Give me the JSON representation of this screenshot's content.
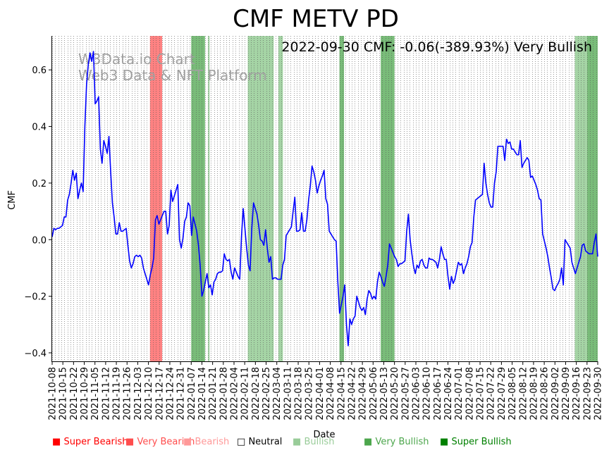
{
  "chart_data": {
    "type": "line",
    "title": "CMF METV PD",
    "xlabel": "Date",
    "ylabel": "CMF",
    "annotation": "2022-09-30 CMF: -0.06(-389.93%) Very Bullish",
    "watermark": [
      "W3Data.io Chart",
      "Web3 Data & NFT Platform"
    ],
    "ylim": [
      -0.43,
      0.72
    ],
    "yticks": [
      -0.4,
      -0.2,
      0.0,
      0.2,
      0.4,
      0.6
    ],
    "ytick_labels": [
      "−0.4",
      "−0.2",
      "0.0",
      "0.2",
      "0.4",
      "0.6"
    ],
    "x_start": "2021-10-08",
    "x_end": "2022-09-30",
    "xtick_labels": [
      "2021-10-08",
      "2021-10-15",
      "2021-10-22",
      "2021-10-29",
      "2021-11-05",
      "2021-11-12",
      "2021-11-19",
      "2021-11-26",
      "2021-12-03",
      "2021-12-10",
      "2021-12-17",
      "2021-12-24",
      "2021-12-31",
      "2022-01-07",
      "2022-01-14",
      "2022-01-21",
      "2022-01-28",
      "2022-02-04",
      "2022-02-11",
      "2022-02-18",
      "2022-02-25",
      "2022-03-04",
      "2022-03-11",
      "2022-03-18",
      "2022-03-25",
      "2022-04-01",
      "2022-04-08",
      "2022-04-15",
      "2022-04-22",
      "2022-04-29",
      "2022-05-06",
      "2022-05-13",
      "2022-05-20",
      "2022-05-27",
      "2022-06-03",
      "2022-06-10",
      "2022-06-17",
      "2022-06-24",
      "2022-07-01",
      "2022-07-08",
      "2022-07-15",
      "2022-07-22",
      "2022-07-29",
      "2022-08-05",
      "2022-08-12",
      "2022-08-19",
      "2022-08-26",
      "2022-09-02",
      "2022-09-09",
      "2022-09-16",
      "2022-09-23",
      "2022-09-30"
    ],
    "line_color": "#0000ff",
    "series": [
      {
        "name": "CMF",
        "values": [
          0.01,
          0.04,
          0.035,
          0.04,
          0.04,
          0.045,
          0.05,
          0.08,
          0.08,
          0.14,
          0.16,
          0.2,
          0.245,
          0.21,
          0.235,
          0.145,
          0.175,
          0.2,
          0.17,
          0.4,
          0.55,
          0.62,
          0.66,
          0.63,
          0.665,
          0.48,
          0.49,
          0.505,
          0.32,
          0.27,
          0.35,
          0.33,
          0.305,
          0.365,
          0.24,
          0.13,
          0.08,
          0.02,
          0.02,
          0.06,
          0.03,
          0.03,
          0.035,
          0.04,
          -0.02,
          -0.075,
          -0.1,
          -0.085,
          -0.06,
          -0.055,
          -0.06,
          -0.055,
          -0.065,
          -0.1,
          -0.12,
          -0.14,
          -0.16,
          -0.125,
          -0.1,
          -0.065,
          0.07,
          0.085,
          0.055,
          0.07,
          0.085,
          0.1,
          0.1,
          0.02,
          0.05,
          0.175,
          0.135,
          0.155,
          0.175,
          0.195,
          0.0,
          -0.03,
          0.005,
          0.065,
          0.08,
          0.13,
          0.12,
          0.015,
          0.08,
          0.055,
          0.03,
          -0.02,
          -0.09,
          -0.2,
          -0.18,
          -0.15,
          -0.12,
          -0.17,
          -0.16,
          -0.195,
          -0.15,
          -0.14,
          -0.12,
          -0.115,
          -0.115,
          -0.11,
          -0.05,
          -0.07,
          -0.075,
          -0.07,
          -0.115,
          -0.14,
          -0.1,
          -0.115,
          -0.13,
          -0.14,
          0.01,
          0.11,
          0.04,
          -0.03,
          -0.09,
          -0.11,
          0.04,
          0.13,
          0.11,
          0.09,
          0.05,
          0.0,
          -0.005,
          -0.02,
          0.035,
          -0.03,
          -0.08,
          -0.06,
          -0.14,
          -0.135,
          -0.135,
          -0.14,
          -0.14,
          -0.14,
          -0.09,
          -0.07,
          0.015,
          0.025,
          0.035,
          0.045,
          0.1,
          0.15,
          0.03,
          0.03,
          0.035,
          0.095,
          0.03,
          0.03,
          0.07,
          0.14,
          0.19,
          0.26,
          0.24,
          0.21,
          0.165,
          0.19,
          0.21,
          0.225,
          0.245,
          0.145,
          0.125,
          0.03,
          0.02,
          0.01,
          0.0,
          -0.005,
          -0.15,
          -0.26,
          -0.23,
          -0.2,
          -0.16,
          -0.3,
          -0.375,
          -0.28,
          -0.3,
          -0.28,
          -0.27,
          -0.2,
          -0.22,
          -0.24,
          -0.25,
          -0.24,
          -0.265,
          -0.21,
          -0.18,
          -0.19,
          -0.21,
          -0.2,
          -0.21,
          -0.15,
          -0.115,
          -0.13,
          -0.15,
          -0.165,
          -0.13,
          -0.09,
          -0.015,
          -0.03,
          -0.045,
          -0.06,
          -0.07,
          -0.095,
          -0.085,
          -0.085,
          -0.08,
          -0.075,
          0.03,
          0.09,
          0.0,
          -0.05,
          -0.095,
          -0.12,
          -0.09,
          -0.1,
          -0.075,
          -0.07,
          -0.09,
          -0.1,
          -0.1,
          -0.065,
          -0.07,
          -0.07,
          -0.075,
          -0.08,
          -0.1,
          -0.07,
          -0.025,
          -0.05,
          -0.07,
          -0.07,
          -0.13,
          -0.175,
          -0.13,
          -0.155,
          -0.14,
          -0.11,
          -0.08,
          -0.09,
          -0.085,
          -0.12,
          -0.1,
          -0.085,
          -0.06,
          -0.025,
          -0.01,
          0.08,
          0.14,
          0.145,
          0.15,
          0.155,
          0.16,
          0.27,
          0.2,
          0.16,
          0.13,
          0.115,
          0.115,
          0.2,
          0.24,
          0.33,
          0.33,
          0.33,
          0.33,
          0.28,
          0.355,
          0.34,
          0.345,
          0.32,
          0.32,
          0.31,
          0.3,
          0.3,
          0.35,
          0.255,
          0.27,
          0.28,
          0.29,
          0.28,
          0.22,
          0.225,
          0.21,
          0.195,
          0.175,
          0.145,
          0.14,
          0.02,
          -0.005,
          -0.03,
          -0.06,
          -0.1,
          -0.135,
          -0.175,
          -0.18,
          -0.165,
          -0.155,
          -0.14,
          -0.1,
          -0.16,
          0.0,
          -0.01,
          -0.02,
          -0.03,
          -0.08,
          -0.1,
          -0.12,
          -0.1,
          -0.08,
          -0.06,
          -0.02,
          -0.015,
          -0.04,
          -0.045,
          -0.05,
          -0.05,
          -0.05,
          -0.01,
          0.02,
          -0.06
        ]
      }
    ],
    "shaded_regions": [
      {
        "start": "2021-12-11",
        "end": "2021-12-19",
        "signal": "Very Bearish",
        "color": "#ff4d4d",
        "opacity": 0.7
      },
      {
        "start": "2022-01-07",
        "end": "2022-01-16",
        "signal": "Very Bullish",
        "color": "#4ca64c",
        "opacity": 0.75
      },
      {
        "start": "2022-01-18",
        "end": "2022-01-19",
        "signal": "Bullish",
        "color": "#7fc27f",
        "opacity": 0.7
      },
      {
        "start": "2022-02-13",
        "end": "2022-03-02",
        "signal": "Bullish",
        "color": "#7fc27f",
        "opacity": 0.7
      },
      {
        "start": "2022-03-05",
        "end": "2022-03-08",
        "signal": "Bullish",
        "color": "#7fc27f",
        "opacity": 0.7
      },
      {
        "start": "2022-04-14",
        "end": "2022-04-17",
        "signal": "Very Bullish",
        "color": "#4ca64c",
        "opacity": 0.75
      },
      {
        "start": "2022-05-11",
        "end": "2022-05-20",
        "signal": "Very Bullish",
        "color": "#4ca64c",
        "opacity": 0.75
      },
      {
        "start": "2022-09-15",
        "end": "2022-09-23",
        "signal": "Bullish",
        "color": "#7fc27f",
        "opacity": 0.7
      },
      {
        "start": "2022-09-23",
        "end": "2022-09-30",
        "signal": "Very Bullish",
        "color": "#4ca64c",
        "opacity": 0.75
      }
    ],
    "legend": [
      {
        "label": "Super Bearish",
        "color": "#ff0000"
      },
      {
        "label": "Very Bearish",
        "color": "#ff4d4d"
      },
      {
        "label": "Bearish",
        "color": "#ff9999"
      },
      {
        "label": "Neutral",
        "color": "#000000"
      },
      {
        "label": "Bullish",
        "color": "#99cc99"
      },
      {
        "label": "Very Bullish",
        "color": "#4ca64c"
      },
      {
        "label": "Super Bullish",
        "color": "#008000"
      }
    ]
  }
}
